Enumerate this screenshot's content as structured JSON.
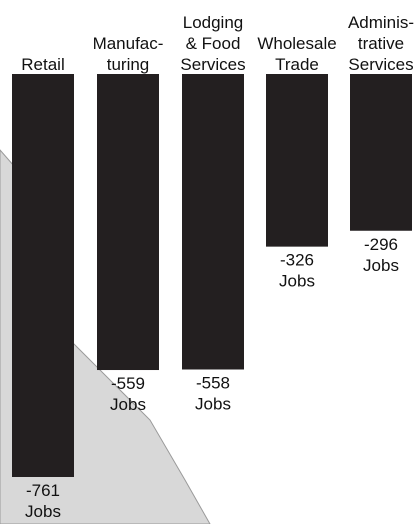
{
  "colors": {
    "bar": "#231f20",
    "map_fill": "#d8d8d8",
    "map_stroke": "#9a9a9a",
    "text": "#111111",
    "background": "#ffffff"
  },
  "chart_data": {
    "type": "bar",
    "orientation": "vertical-downward",
    "categories": [
      [
        "Retail"
      ],
      [
        "Manufac-",
        "turing"
      ],
      [
        "Lodging",
        "& Food",
        "Services"
      ],
      [
        "Wholesale",
        "Trade"
      ],
      [
        "Adminis-",
        "trative",
        "Services"
      ]
    ],
    "values": [
      -761,
      -559,
      -558,
      -326,
      -296
    ],
    "data_labels": [
      [
        "-761",
        "Jobs"
      ],
      [
        "-559",
        "Jobs"
      ],
      [
        "-558",
        "Jobs"
      ],
      [
        "-326",
        "Jobs"
      ],
      [
        "-296",
        "Jobs"
      ]
    ],
    "ylim": [
      -761,
      0
    ],
    "grid": false,
    "legend": "none"
  }
}
